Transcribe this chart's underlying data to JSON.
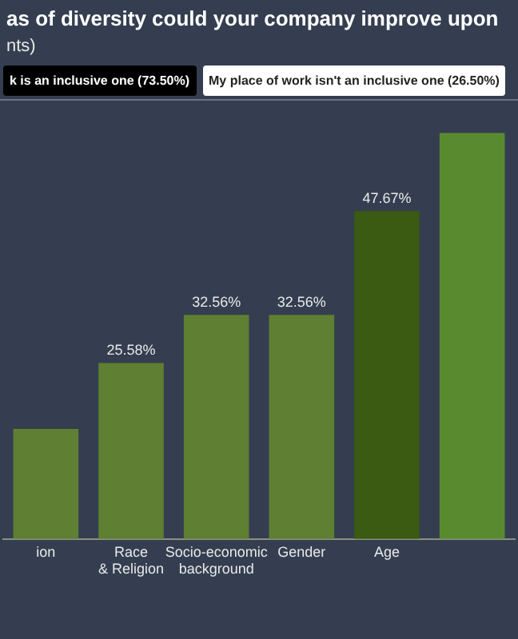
{
  "chart_data": {
    "type": "bar",
    "title": "as of diversity could your company improve upon",
    "subtitle": "nts)",
    "annotations": [
      "k is an inclusive one (73.50%)",
      "My place of work isn't an inclusive one (26.50%)"
    ],
    "categories": [
      "ion",
      "Race & Religion",
      "Socio-economic background",
      "Gender",
      "Age",
      null
    ],
    "values": [
      16,
      25.58,
      32.56,
      32.56,
      47.67,
      59
    ],
    "colors": [
      "#5f7f33",
      "#5f7f33",
      "#5f7f33",
      "#5f7f33",
      "#3b5a12",
      "#5a8a30"
    ],
    "value_labels": [
      null,
      "25.58%",
      "32.56%",
      "32.56%",
      "47.67%",
      null
    ],
    "legend": false
  }
}
